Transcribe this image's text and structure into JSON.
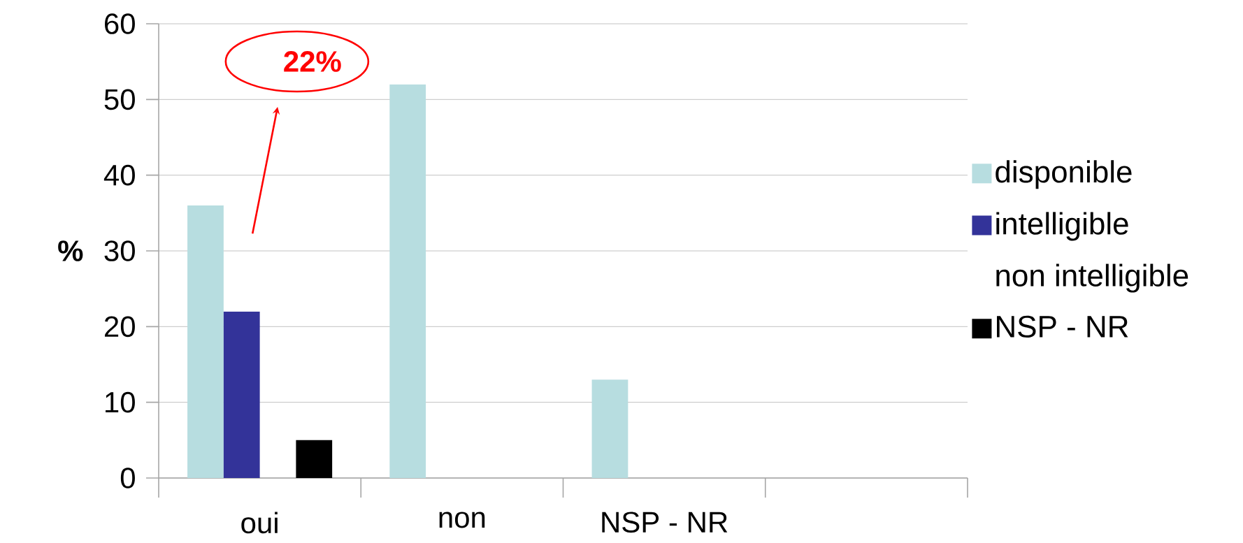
{
  "chart_data": {
    "type": "bar",
    "ylabel": "%",
    "categories": [
      "oui",
      "non",
      "NSP - NR",
      null
    ],
    "series": [
      {
        "name": "disponible",
        "color": "#b7dde0",
        "values": [
          36,
          52,
          13,
          null
        ]
      },
      {
        "name": "intelligible",
        "color": "#333399",
        "values": [
          22,
          null,
          null,
          null
        ]
      },
      {
        "name": "non intelligible",
        "values": [
          null,
          null,
          null,
          null
        ]
      },
      {
        "name": "NSP - NR",
        "color": "#000000",
        "values": [
          5,
          null,
          null,
          null
        ]
      }
    ],
    "ylim": [
      0,
      60
    ],
    "yticks": [
      0,
      10,
      20,
      30,
      40,
      50,
      60
    ],
    "grid": "y",
    "legend": "right",
    "annotations": [
      "22%"
    ]
  }
}
